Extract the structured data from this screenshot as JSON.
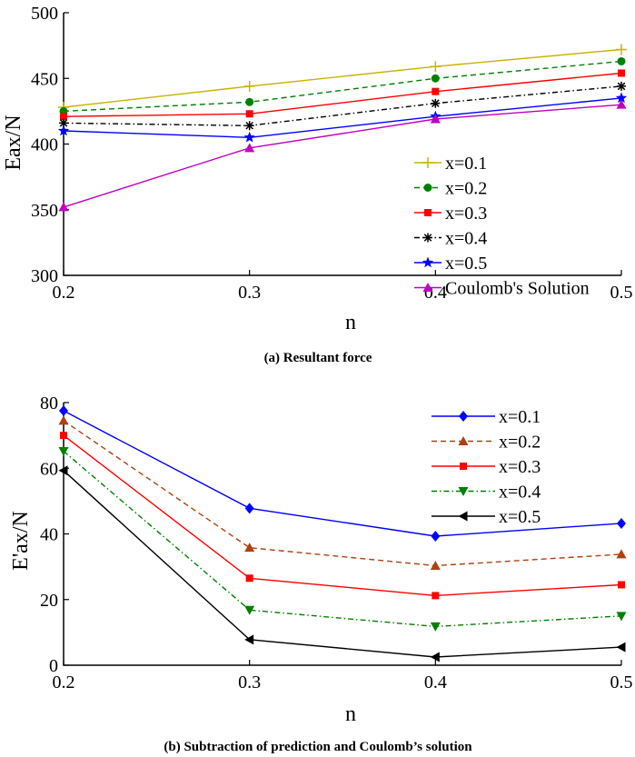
{
  "chart_data": [
    {
      "type": "line",
      "caption": "(a) Resultant force",
      "xlabel": "n",
      "ylabel": "Eax/N",
      "x": [
        0.2,
        0.3,
        0.4,
        0.5
      ],
      "xticks": [
        "0.2",
        "0.3",
        "0.4",
        "0.5"
      ],
      "yticks": [
        "300",
        "350",
        "400",
        "450",
        "500"
      ],
      "xlim": [
        0.2,
        0.5
      ],
      "ylim": [
        300,
        500
      ],
      "grid": false,
      "legend_position": "bottom-right",
      "series": [
        {
          "name": "x=0.1",
          "values": [
            428,
            444,
            459,
            472
          ],
          "color": "#c8b400",
          "dash": "solid",
          "marker": "plus"
        },
        {
          "name": "x=0.2",
          "values": [
            425,
            432,
            450,
            463
          ],
          "color": "#008000",
          "dash": "dashed",
          "marker": "circle"
        },
        {
          "name": "x=0.3",
          "values": [
            421,
            423,
            440,
            454
          ],
          "color": "#ff0000",
          "dash": "solid",
          "marker": "square"
        },
        {
          "name": "x=0.4",
          "values": [
            416,
            414,
            431,
            444
          ],
          "color": "#000000",
          "dash": "dashdot",
          "marker": "asterisk"
        },
        {
          "name": "x=0.5",
          "values": [
            410,
            405,
            421,
            435
          ],
          "color": "#0000ff",
          "dash": "solid",
          "marker": "star"
        },
        {
          "name": "Coulomb's Solution",
          "values": [
            352,
            397,
            419,
            430
          ],
          "color": "#c000c0",
          "dash": "solid",
          "marker": "triangle-up"
        }
      ]
    },
    {
      "type": "line",
      "caption": "(b) Subtraction of prediction and Coulomb’s solution",
      "xlabel": "n",
      "ylabel": "E'ax/N",
      "x": [
        0.2,
        0.3,
        0.4,
        0.5
      ],
      "xticks": [
        "0.2",
        "0.3",
        "0.4",
        "0.5"
      ],
      "yticks": [
        "0",
        "20",
        "40",
        "60",
        "80"
      ],
      "xlim": [
        0.2,
        0.5
      ],
      "ylim": [
        0,
        80
      ],
      "grid": false,
      "legend_position": "top-right",
      "series": [
        {
          "name": "x=0.1",
          "values": [
            77.5,
            47.8,
            39.3,
            43.2
          ],
          "color": "#0000ff",
          "dash": "solid",
          "marker": "diamond"
        },
        {
          "name": "x=0.2",
          "values": [
            74.5,
            35.8,
            30.3,
            33.8
          ],
          "color": "#b04010",
          "dash": "dashed",
          "marker": "triangle-up"
        },
        {
          "name": "x=0.3",
          "values": [
            70.0,
            26.5,
            21.2,
            24.5
          ],
          "color": "#ff0000",
          "dash": "solid",
          "marker": "square"
        },
        {
          "name": "x=0.4",
          "values": [
            65.2,
            16.8,
            11.8,
            15.0
          ],
          "color": "#008000",
          "dash": "dashdot",
          "marker": "triangle-down"
        },
        {
          "name": "x=0.5",
          "values": [
            59.3,
            7.8,
            2.5,
            5.5
          ],
          "color": "#000000",
          "dash": "solid",
          "marker": "triangle-left"
        }
      ]
    }
  ]
}
